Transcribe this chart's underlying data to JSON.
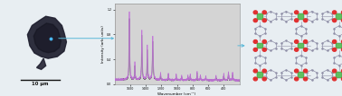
{
  "bg_color": "#e8eef2",
  "left_panel": {
    "bg_color": "#b8c8d4",
    "crystal_color": "#252535",
    "dot_color": "#4ab8f0",
    "scale_bar_text": "10 μm",
    "arrow_color": "#5ab8d8"
  },
  "middle_panel": {
    "bg_color": "#d4d4d4",
    "xlabel": "Wavenumber (cm⁻¹)",
    "ylabel": "Intensity (arb. units)",
    "line1_color": "#c070d8",
    "line2_color": "#585858",
    "xlim": [
      1800,
      200
    ],
    "ylim": [
      0.0,
      1.3
    ]
  },
  "right_panel": {
    "bg_color": "#ffffff",
    "cu_color": "#60c060",
    "o_color": "#e03030",
    "c_color": "#9090a8",
    "bond_color": "#9090a8",
    "arrow_color": "#5ab8d8"
  }
}
